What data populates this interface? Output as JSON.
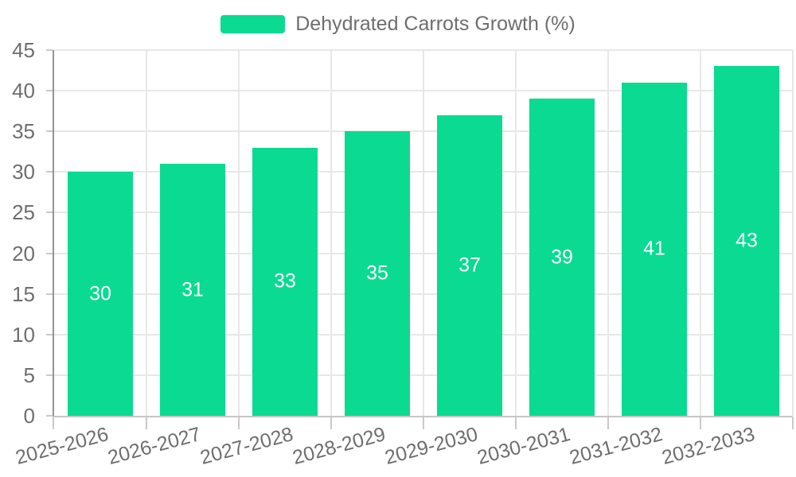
{
  "legend": {
    "position": "top",
    "items": [
      {
        "label": "Dehydrated Carrots Growth (%)",
        "color": "#0ADA92"
      }
    ]
  },
  "chart_data": {
    "type": "bar",
    "title": "",
    "categories": [
      "2025-2026",
      "2026-2027",
      "2027-2028",
      "2028-2029",
      "2029-2030",
      "2030-2031",
      "2031-2032",
      "2032-2033"
    ],
    "series": [
      {
        "name": "Dehydrated Carrots Growth (%)",
        "values": [
          30,
          31,
          33,
          35,
          37,
          39,
          41,
          43
        ],
        "color": "#0ADA92"
      }
    ],
    "value_labels": [
      30,
      31,
      33,
      35,
      37,
      39,
      41,
      43
    ],
    "value_label_position": "inside-center",
    "xlabel": "",
    "ylabel": "",
    "ylim": [
      0,
      45
    ],
    "ytick_step": 5,
    "yticks": [
      0,
      5,
      10,
      15,
      20,
      25,
      30,
      35,
      40,
      45
    ],
    "grid": true,
    "x_label_rotation_deg": -15,
    "legend_position": "top-center",
    "colors": {
      "bar": "#0ADA92",
      "value_label_text": "#FFFFFF",
      "axis_text": "#6E6E6E",
      "gridline": "#E7E7E7",
      "y_axis_line": "#949494",
      "x_axis_line": "#C6C6C6",
      "tick": "#C9C9C9",
      "background": "#FFFFFF"
    }
  }
}
